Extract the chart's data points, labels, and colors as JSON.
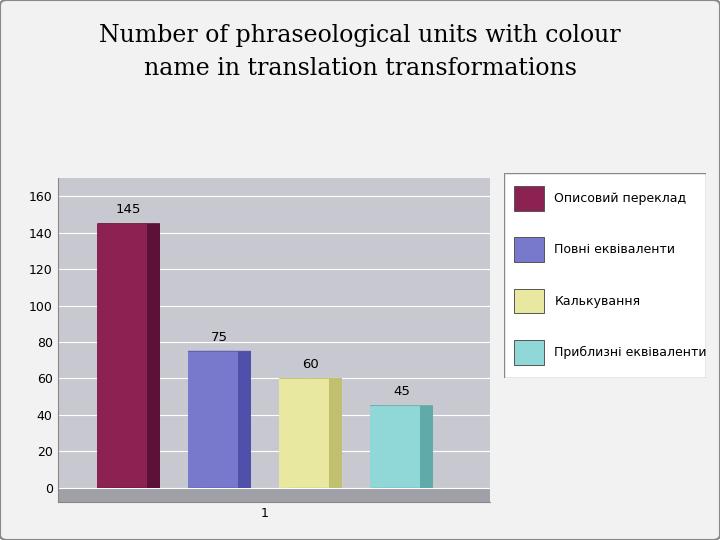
{
  "title_line1": "Number of phraseological units with colour",
  "title_line2": "name in translation transformations",
  "series": [
    {
      "label": "Описовий переклад",
      "value": 145,
      "color": "#8B2252",
      "dark_color": "#5C1238",
      "top_color": "#A03060"
    },
    {
      "label": "Повні еквіваленти",
      "value": 75,
      "color": "#7878CC",
      "dark_color": "#5050AA",
      "top_color": "#9898E8"
    },
    {
      "label": "Калькування",
      "value": 60,
      "color": "#E8E8A0",
      "dark_color": "#C0C070",
      "top_color": "#F0F0C0"
    },
    {
      "label": "Приблизні еквіваленти",
      "value": 45,
      "color": "#90D8D8",
      "dark_color": "#60AAAA",
      "top_color": "#B0F0F0"
    }
  ],
  "ylim_max": 170,
  "yticks": [
    0,
    20,
    40,
    60,
    80,
    100,
    120,
    140,
    160
  ],
  "fig_bg": "#F2F2F2",
  "plot_bg": "#C0C0C8",
  "floor_color": "#A0A0A8",
  "wall_color": "#C8C8D0",
  "title_fontsize": 17,
  "legend_fontsize": 9,
  "tick_fontsize": 9
}
